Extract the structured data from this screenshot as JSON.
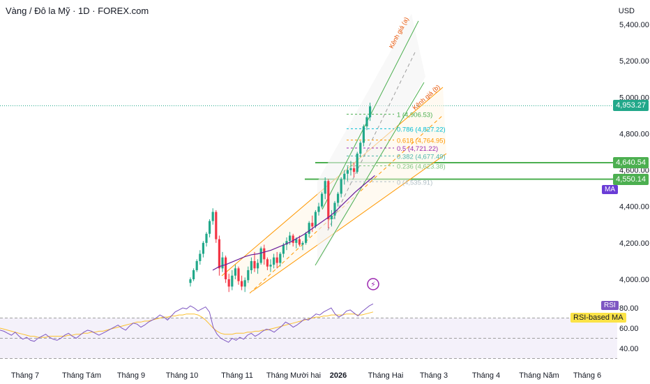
{
  "header": {
    "title": "Vàng / Đô la Mỹ · 1D · FOREX.com",
    "currency": "USD"
  },
  "colors": {
    "up": "#22a88a",
    "down": "#f23645",
    "green": "#4caf50",
    "orange": "#ff9800",
    "purple": "#7e57c2",
    "ma": "#6a1b9a",
    "rsi_ma": "#fbc02d"
  },
  "chart_data": {
    "type": "candlestick",
    "price_ticks": [
      "5,400.00",
      "5,200.00",
      "5,000.00",
      "4,800.00",
      "4,600.00",
      "4,400.00",
      "4,200.00",
      "4,000.00"
    ],
    "price_tick_values": [
      5400,
      5200,
      5000,
      4800,
      4600,
      4400,
      4200,
      4000
    ],
    "x_labels": [
      "Tháng 7",
      "Tháng Tám",
      "Tháng 9",
      "Tháng 10",
      "Tháng 11",
      "Tháng Mười hai",
      "2026",
      "Tháng Hai",
      "Tháng 3",
      "Tháng 4",
      "Tháng Năm",
      "Tháng 6"
    ],
    "rsi_ticks": [
      "80.00",
      "60.00",
      "40.00"
    ],
    "rsi_tick_values": [
      80,
      60,
      40
    ],
    "price_labels": [
      {
        "text": "4,953.27",
        "value": 4953.27,
        "color": "#22a88a"
      },
      {
        "text": "4,640.54",
        "value": 4640.54,
        "color": "#4caf50"
      },
      {
        "text": "4,550.14",
        "value": 4550.14,
        "color": "#4caf50"
      }
    ],
    "horizontal_levels": [
      4640.54,
      4550.14
    ],
    "channels": [
      {
        "label": "Kênh giá (a)",
        "color": "#4caf50"
      },
      {
        "label": "Kênh giá (b)",
        "color": "#ff9800"
      }
    ],
    "fib_levels": [
      {
        "text": "1 (4,906.53)",
        "value": 4906.53,
        "color": "#4caf50"
      },
      {
        "text": "0.786 (4,827.22)",
        "value": 4827.22,
        "color": "#00bcd4"
      },
      {
        "text": "0.618 (4,764.95)",
        "value": 4764.95,
        "color": "#ff9800"
      },
      {
        "text": "0.5 (4,721.22)",
        "value": 4721.22,
        "color": "#9c27b0"
      },
      {
        "text": "0.382 (4,677.49)",
        "value": 4677.49,
        "color": "#4db6ac"
      },
      {
        "text": "0.236 (4,623.38)",
        "value": 4623.38,
        "color": "#81c784"
      },
      {
        "text": "0 (4,535.91)",
        "value": 4535.91,
        "color": "#b0bec5"
      }
    ],
    "indicators": {
      "ma_label": "MA",
      "rsi_label": "RSI",
      "rsi_ma_label": "RSI-based MA"
    },
    "candles": [
      [
        3980,
        4010,
        3960,
        4000
      ],
      [
        4000,
        4060,
        3990,
        4050
      ],
      [
        4050,
        4110,
        4040,
        4100
      ],
      [
        4100,
        4160,
        4080,
        4140
      ],
      [
        4140,
        4210,
        4120,
        4200
      ],
      [
        4200,
        4260,
        4180,
        4250
      ],
      [
        4250,
        4330,
        4230,
        4320
      ],
      [
        4320,
        4390,
        4300,
        4370
      ],
      [
        4370,
        4380,
        4200,
        4220
      ],
      [
        4220,
        4240,
        4020,
        4060
      ],
      [
        4060,
        4150,
        4040,
        4120
      ],
      [
        4120,
        4130,
        3980,
        4000
      ],
      [
        4000,
        4030,
        3930,
        3960
      ],
      [
        3960,
        4050,
        3940,
        4020
      ],
      [
        4020,
        4080,
        4000,
        4060
      ],
      [
        4060,
        4070,
        3970,
        3990
      ],
      [
        3990,
        4020,
        3940,
        3960
      ],
      [
        3960,
        4010,
        3930,
        3995
      ],
      [
        3995,
        4070,
        3980,
        4050
      ],
      [
        4050,
        4120,
        4030,
        4100
      ],
      [
        4100,
        4150,
        4040,
        4060
      ],
      [
        4060,
        4110,
        4030,
        4090
      ],
      [
        4090,
        4180,
        4080,
        4170
      ],
      [
        4170,
        4190,
        4080,
        4110
      ],
      [
        4110,
        4120,
        4050,
        4070
      ],
      [
        4070,
        4110,
        4040,
        4080
      ],
      [
        4080,
        4140,
        4060,
        4120
      ],
      [
        4120,
        4150,
        4060,
        4090
      ],
      [
        4090,
        4150,
        4070,
        4140
      ],
      [
        4140,
        4200,
        4120,
        4190
      ],
      [
        4190,
        4230,
        4160,
        4210
      ],
      [
        4210,
        4260,
        4190,
        4240
      ],
      [
        4240,
        4250,
        4180,
        4200
      ],
      [
        4200,
        4230,
        4170,
        4220
      ],
      [
        4220,
        4240,
        4180,
        4190
      ],
      [
        4190,
        4210,
        4160,
        4200
      ],
      [
        4200,
        4260,
        4190,
        4250
      ],
      [
        4250,
        4320,
        4230,
        4310
      ],
      [
        4310,
        4350,
        4260,
        4290
      ],
      [
        4290,
        4380,
        4280,
        4370
      ],
      [
        4370,
        4420,
        4350,
        4400
      ],
      [
        4400,
        4480,
        4390,
        4470
      ],
      [
        4470,
        4560,
        4440,
        4540
      ],
      [
        4540,
        4550,
        4280,
        4330
      ],
      [
        4330,
        4380,
        4290,
        4350
      ],
      [
        4350,
        4430,
        4330,
        4420
      ],
      [
        4420,
        4480,
        4400,
        4470
      ],
      [
        4470,
        4560,
        4450,
        4550
      ],
      [
        4550,
        4600,
        4520,
        4580
      ],
      [
        4580,
        4620,
        4540,
        4600
      ],
      [
        4600,
        4650,
        4570,
        4610
      ],
      [
        4610,
        4640,
        4560,
        4590
      ],
      [
        4590,
        4700,
        4580,
        4690
      ],
      [
        4690,
        4760,
        4670,
        4750
      ],
      [
        4750,
        4850,
        4730,
        4840
      ],
      [
        4840,
        4900,
        4820,
        4890
      ],
      [
        4890,
        4970,
        4870,
        4950
      ]
    ],
    "ma": [
      4050,
      4070,
      4080,
      4095,
      4110,
      4125,
      4135,
      4140,
      4150,
      4160,
      4175,
      4190,
      4205,
      4225,
      4245,
      4270,
      4295,
      4320,
      4345,
      4375,
      4410,
      4445,
      4480,
      4510,
      4540,
      4570
    ],
    "rsi": [
      58,
      57,
      55,
      53,
      56,
      52,
      49,
      51,
      48,
      47,
      50,
      52,
      54,
      51,
      49,
      48,
      50,
      53,
      55,
      52,
      50,
      53,
      56,
      58,
      57,
      55,
      53,
      55,
      57,
      59,
      61,
      63,
      60,
      58,
      62,
      65,
      64,
      61,
      63,
      66,
      68,
      70,
      73,
      71,
      68,
      72,
      76,
      78,
      80,
      79,
      82,
      80,
      77,
      79,
      81,
      76,
      61,
      54,
      50,
      48,
      46,
      50,
      48,
      51,
      49,
      53,
      55,
      52,
      54,
      57,
      59,
      58,
      56,
      59,
      62,
      66,
      64,
      61,
      63,
      66,
      69,
      68,
      71,
      74,
      73,
      76,
      78,
      80,
      74,
      71,
      73,
      77,
      78,
      75,
      72,
      76,
      79,
      82,
      84
    ],
    "rsi_ma": [
      60,
      59,
      58,
      57,
      56,
      55,
      54,
      53,
      52,
      52,
      51,
      51,
      51,
      52,
      52,
      52,
      52,
      52,
      53,
      53,
      54,
      54,
      55,
      55,
      56,
      56,
      57,
      57,
      58,
      59,
      60,
      61,
      62,
      63,
      64,
      65,
      66,
      66,
      67,
      67,
      68,
      69,
      70,
      71,
      71,
      72,
      72,
      73,
      73,
      74,
      74,
      74,
      73,
      71,
      68,
      64,
      60,
      57,
      55,
      54,
      54,
      54,
      55,
      55,
      55,
      56,
      56,
      57,
      57,
      58,
      58,
      59,
      60,
      61,
      62,
      63,
      64,
      65,
      66,
      67,
      68,
      69,
      70,
      71,
      71,
      72,
      72,
      73,
      73,
      73,
      73,
      74,
      74,
      74,
      73,
      73,
      74,
      75,
      76
    ]
  }
}
